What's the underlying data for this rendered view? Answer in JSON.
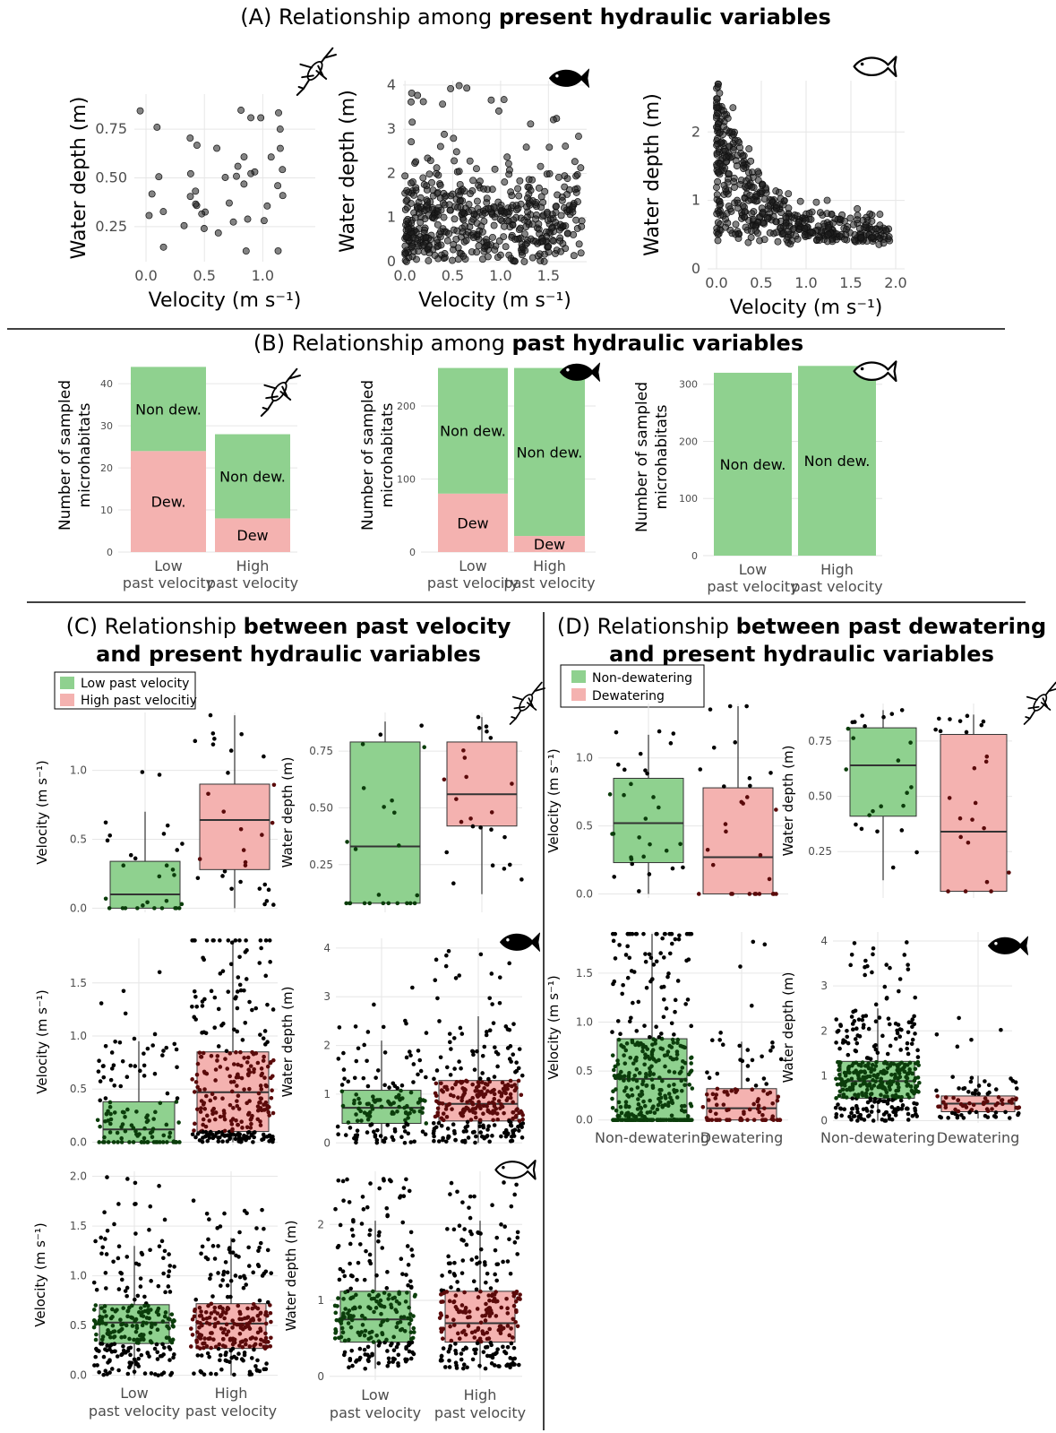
{
  "sections": {
    "A": {
      "prefix": "(A) Relationship among ",
      "bold": "present hydraulic variables"
    },
    "B": {
      "prefix": "(B) Relationship among ",
      "bold": "past hydraulic variables"
    },
    "C": {
      "prefix": "(C) Relationship ",
      "bold1": "between past velocity",
      "bold2": "and present hydraulic variables"
    },
    "D": {
      "prefix": "(D) Relationship ",
      "bold1": "between past dewatering",
      "bold2": "and present hydraulic variables"
    }
  },
  "legends": {
    "C": {
      "items": [
        "Low past velocity",
        "High past velocitiy"
      ]
    },
    "D": {
      "items": [
        "Non-dewatering",
        "Dewatering"
      ]
    }
  },
  "icons": [
    "insect-icon",
    "filled-fish-icon",
    "outline-fish-icon"
  ],
  "colors": {
    "green": "#8fd18f",
    "red": "#f4b2b0",
    "green_dots": "#0b3d0b",
    "red_dots": "#5a0a0a"
  },
  "labels": {
    "velocity": "Velocity (m s⁻¹)",
    "depth": "Water depth (m)",
    "count_line1": "Number of sampled",
    "count_line2": "microhabitats",
    "low": "Low",
    "high": "High",
    "past_velocity": "past velocity",
    "non_dew_long": "Non-dewatering",
    "dew_long": "Dewatering"
  },
  "chart_data": [
    {
      "id": "A1",
      "type": "scatter",
      "icon": "insect-icon",
      "xlabel": "Velocity (m s⁻¹)",
      "ylabel": "Water depth (m)",
      "xticks": [
        0.0,
        0.5,
        1.0
      ],
      "yticks": [
        0.25,
        0.5,
        0.75
      ],
      "xlim": [
        -0.1,
        1.45
      ],
      "ylim": [
        0.07,
        0.93
      ],
      "n": 44
    },
    {
      "id": "A2",
      "type": "scatter",
      "icon": "filled-fish-icon",
      "xlabel": "Velocity (m s⁻¹)",
      "ylabel": "Water depth (m)",
      "xticks": [
        0.0,
        0.5,
        1.0,
        1.5
      ],
      "yticks": [
        0,
        1,
        2,
        3,
        4
      ],
      "xlim": [
        -0.02,
        1.9
      ],
      "ylim": [
        0,
        4.1
      ],
      "n": 520
    },
    {
      "id": "A3",
      "type": "scatter",
      "icon": "outline-fish-icon",
      "xlabel": "Velocity (m s⁻¹)",
      "ylabel": "Water depth (m)",
      "xticks": [
        0.0,
        0.5,
        1.0,
        1.5,
        2.0
      ],
      "yticks": [
        0,
        1,
        2
      ],
      "xlim": [
        -0.1,
        2.1
      ],
      "ylim": [
        0,
        2.75
      ],
      "n": 480
    },
    {
      "id": "B1",
      "type": "bar",
      "icon": "insect-icon",
      "stacked": true,
      "ylabel": "Number of sampled microhabitats",
      "yticks": [
        0,
        10,
        20,
        30,
        40
      ],
      "ylim": [
        0,
        46
      ],
      "categories": [
        "Low past velocity",
        "High past velocity"
      ],
      "series": [
        {
          "name": "Dew.",
          "label": [
            "Dew.",
            "Dew"
          ],
          "values": [
            24,
            8
          ]
        },
        {
          "name": "Non dew.",
          "label": [
            "Non dew.",
            "Non dew."
          ],
          "values": [
            20,
            20
          ]
        }
      ]
    },
    {
      "id": "B2",
      "type": "bar",
      "icon": "filled-fish-icon",
      "stacked": true,
      "ylabel": "Number of sampled microhabitats",
      "yticks": [
        0,
        100,
        200
      ],
      "ylim": [
        0,
        265
      ],
      "categories": [
        "Low past velocity",
        "High past velocity"
      ],
      "series": [
        {
          "name": "Dew",
          "label": [
            "Dew",
            "Dew"
          ],
          "values": [
            80,
            22
          ]
        },
        {
          "name": "Non dew.",
          "label": [
            "Non dew.",
            "Non dew."
          ],
          "values": [
            172,
            230
          ]
        }
      ]
    },
    {
      "id": "B3",
      "type": "bar",
      "icon": "outline-fish-icon",
      "stacked": true,
      "ylabel": "Number of sampled microhabitats",
      "yticks": [
        0,
        100,
        200,
        300
      ],
      "ylim": [
        0,
        345
      ],
      "categories": [
        "Low past velocity",
        "High past velocity"
      ],
      "series": [
        {
          "name": "Dew",
          "label": [
            "",
            ""
          ],
          "values": [
            0,
            0
          ]
        },
        {
          "name": "Non dew.",
          "label": [
            "Non dew.",
            "Non dew."
          ],
          "values": [
            320,
            332
          ]
        }
      ]
    },
    {
      "id": "C1",
      "type": "box",
      "icon": "",
      "ylabel": "Velocity (m s⁻¹)",
      "yticks": [
        0.0,
        0.5,
        1.0
      ],
      "ylim": [
        -0.03,
        1.42
      ],
      "boxes": [
        {
          "q1": 0.0,
          "med": 0.1,
          "q3": 0.34,
          "lo": 0.0,
          "hi": 0.7,
          "n": 30,
          "max": 1.16
        },
        {
          "q1": 0.28,
          "med": 0.64,
          "q3": 0.9,
          "lo": 0.0,
          "hi": 1.4,
          "n": 30,
          "max": 1.4
        }
      ]
    },
    {
      "id": "C2",
      "type": "box",
      "icon": "insect-icon",
      "ylabel": "Water depth (m)",
      "yticks": [
        0.25,
        0.5,
        0.75
      ],
      "ylim": [
        0.04,
        0.92
      ],
      "boxes": [
        {
          "q1": 0.08,
          "med": 0.33,
          "q3": 0.79,
          "lo": 0.08,
          "hi": 0.88,
          "n": 24,
          "max": 0.88
        },
        {
          "q1": 0.42,
          "med": 0.56,
          "q3": 0.79,
          "lo": 0.12,
          "hi": 0.9,
          "n": 24,
          "max": 0.9
        }
      ]
    },
    {
      "id": "C3",
      "type": "box",
      "icon": "",
      "ylabel": "Velocity (m s⁻¹)",
      "yticks": [
        0.0,
        0.5,
        1.0,
        1.5
      ],
      "ylim": [
        -0.03,
        1.92
      ],
      "boxes": [
        {
          "q1": 0.0,
          "med": 0.12,
          "q3": 0.38,
          "lo": 0.0,
          "hi": 0.95,
          "n": 120,
          "max": 1.7
        },
        {
          "q1": 0.1,
          "med": 0.47,
          "q3": 0.85,
          "lo": 0.0,
          "hi": 1.9,
          "n": 300,
          "max": 1.9
        }
      ]
    },
    {
      "id": "C4",
      "type": "box",
      "icon": "filled-fish-icon",
      "ylabel": "Water depth (m)",
      "yticks": [
        0,
        1,
        2,
        3,
        4
      ],
      "ylim": [
        -0.05,
        4.2
      ],
      "boxes": [
        {
          "q1": 0.4,
          "med": 0.72,
          "q3": 1.08,
          "lo": 0.0,
          "hi": 2.1,
          "n": 150,
          "max": 3.3
        },
        {
          "q1": 0.45,
          "med": 0.8,
          "q3": 1.28,
          "lo": 0.0,
          "hi": 2.6,
          "n": 300,
          "max": 4.0
        }
      ]
    },
    {
      "id": "C5",
      "type": "box",
      "icon": "",
      "ylabel": "Velocity (m s⁻¹)",
      "yticks": [
        0.0,
        0.5,
        1.0,
        1.5,
        2.0
      ],
      "ylim": [
        -0.03,
        2.05
      ],
      "xcats": [
        "Low past velocity",
        "High past velocity"
      ],
      "boxes": [
        {
          "q1": 0.32,
          "med": 0.53,
          "q3": 0.71,
          "lo": 0.0,
          "hi": 1.3,
          "n": 260,
          "max": 2.0
        },
        {
          "q1": 0.27,
          "med": 0.52,
          "q3": 0.72,
          "lo": 0.0,
          "hi": 1.38,
          "n": 260,
          "max": 1.82
        }
      ]
    },
    {
      "id": "C6",
      "type": "box",
      "icon": "outline-fish-icon",
      "ylabel": "Water depth (m)",
      "yticks": [
        0,
        1,
        2
      ],
      "ylim": [
        -0.05,
        2.7
      ],
      "xcats": [
        "Low past velocity",
        "High past velocity"
      ],
      "boxes": [
        {
          "q1": 0.45,
          "med": 0.75,
          "q3": 1.12,
          "lo": 0.1,
          "hi": 2.05,
          "n": 250,
          "max": 2.62
        },
        {
          "q1": 0.45,
          "med": 0.7,
          "q3": 1.12,
          "lo": 0.1,
          "hi": 2.05,
          "n": 250,
          "max": 2.6
        }
      ]
    },
    {
      "id": "D1",
      "type": "box",
      "icon": "",
      "ylabel": "Velocity (m s⁻¹)",
      "yticks": [
        0.0,
        0.5,
        1.0
      ],
      "ylim": [
        -0.03,
        1.4
      ],
      "boxes": [
        {
          "q1": 0.23,
          "med": 0.52,
          "q3": 0.85,
          "lo": 0.0,
          "hi": 1.17,
          "n": 30,
          "max": 1.2
        },
        {
          "q1": 0.0,
          "med": 0.27,
          "q3": 0.78,
          "lo": 0.0,
          "hi": 1.38,
          "n": 30,
          "max": 1.38
        }
      ]
    },
    {
      "id": "D2",
      "type": "box",
      "icon": "insect-icon",
      "ylabel": "Water depth (m)",
      "yticks": [
        0.25,
        0.5,
        0.75
      ],
      "ylim": [
        0.04,
        0.92
      ],
      "boxes": [
        {
          "q1": 0.41,
          "med": 0.64,
          "q3": 0.81,
          "lo": 0.12,
          "hi": 0.89,
          "n": 24,
          "max": 0.89
        },
        {
          "q1": 0.07,
          "med": 0.34,
          "q3": 0.78,
          "lo": 0.07,
          "hi": 0.87,
          "n": 24,
          "max": 0.87
        }
      ]
    },
    {
      "id": "D3",
      "type": "box",
      "icon": "",
      "ylabel": "Velocity (m s⁻¹)",
      "yticks": [
        0.0,
        0.5,
        1.0,
        1.5
      ],
      "ylim": [
        -0.03,
        1.92
      ],
      "xcats": [
        "Non-dewatering",
        "Dewatering"
      ],
      "boxes": [
        {
          "q1": 0.0,
          "med": 0.42,
          "q3": 0.83,
          "lo": 0.0,
          "hi": 1.9,
          "n": 380,
          "max": 1.9
        },
        {
          "q1": 0.0,
          "med": 0.12,
          "q3": 0.32,
          "lo": 0.0,
          "hi": 0.8,
          "n": 90,
          "max": 1.85
        }
      ]
    },
    {
      "id": "D4",
      "type": "box",
      "icon": "filled-fish-icon",
      "ylabel": "Water depth (m)",
      "yticks": [
        0,
        1,
        2,
        3,
        4
      ],
      "ylim": [
        -0.05,
        4.2
      ],
      "xcats": [
        "Non-dewatering",
        "Dewatering"
      ],
      "boxes": [
        {
          "q1": 0.5,
          "med": 0.88,
          "q3": 1.32,
          "lo": 0.0,
          "hi": 2.5,
          "n": 380,
          "max": 4.0
        },
        {
          "q1": 0.2,
          "med": 0.38,
          "q3": 0.55,
          "lo": 0.05,
          "hi": 1.0,
          "n": 90,
          "max": 2.5
        }
      ]
    }
  ]
}
